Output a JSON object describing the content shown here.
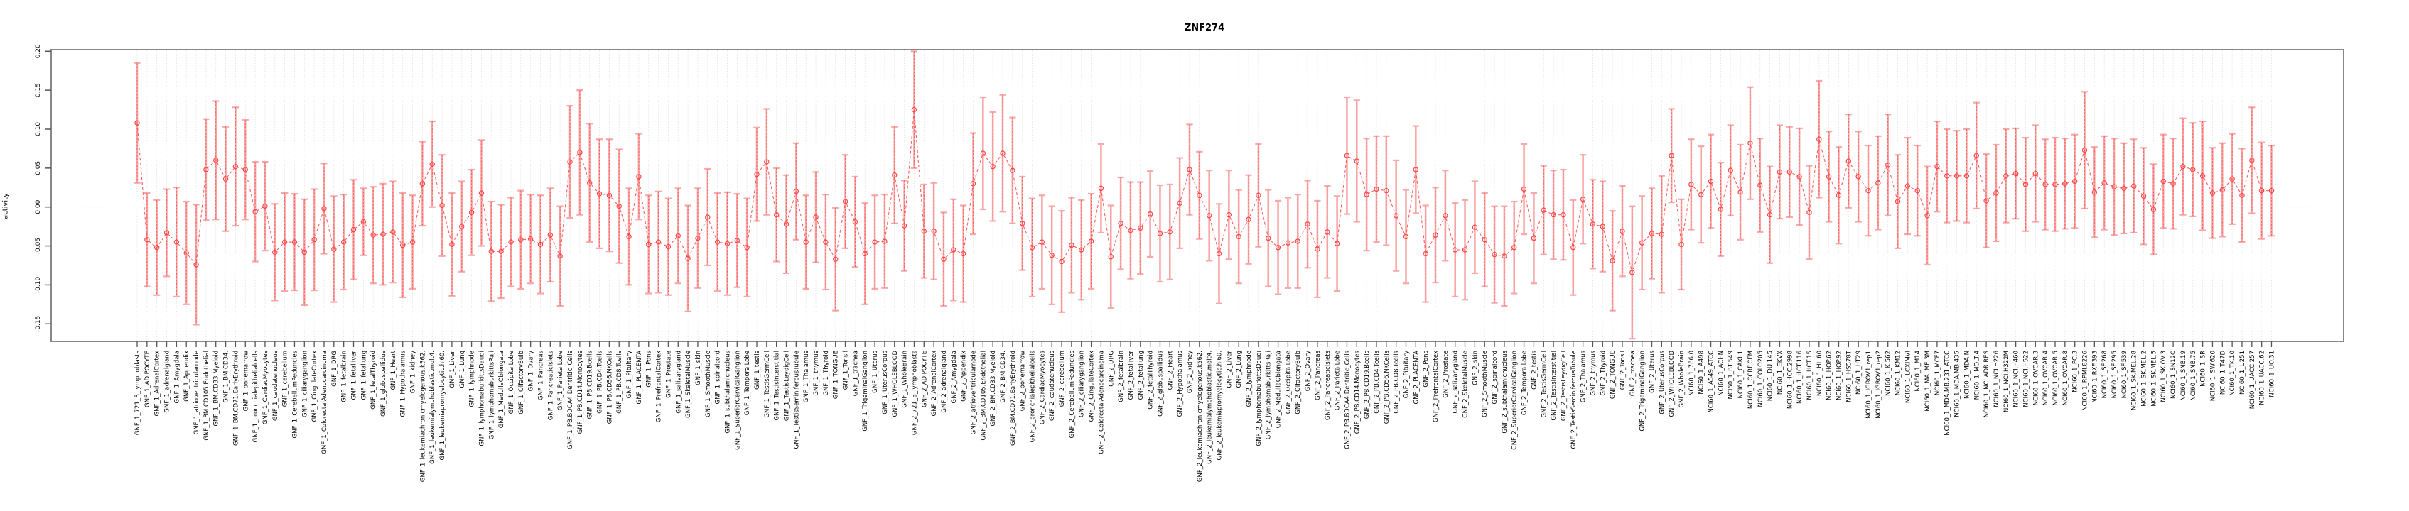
{
  "window": {
    "title": "ZNF274"
  },
  "chart_data": {
    "type": "scatter",
    "title": "ZNF274",
    "ylabel": "activity",
    "xlabel": "",
    "ylim": [
      -0.173,
      0.202
    ],
    "yticks": [
      0.2,
      0.15,
      0.1,
      0.05,
      0.0,
      -0.05,
      -0.1,
      -0.15
    ],
    "grid": "vertical dotted gridline per category; dotted horizontal line at 0.00",
    "legend_position": "none",
    "marker": "open-circle",
    "line_style": "dashed",
    "error_bars": true,
    "colors": {
      "marker": "#ff4444",
      "series_line": "#ff5555",
      "errorbar": "#f9a8a8",
      "gridline": "#d9d9d9",
      "zero_line": "#d0d0d0",
      "axis_box": "#888888",
      "tick": "#555555",
      "text": "#000000",
      "background": "#ffffff"
    },
    "categories": [
      "GNF_1_721_B_lymphoblasts",
      "GNF_1_ADIPOCYTE",
      "GNF_1_AdrenalCortex",
      "GNF_1_adrenalgland",
      "GNF_1_Amygdala",
      "GNF_1_Appendix",
      "GNF_1_atrioventricularnode",
      "GNF_1_BM.CD105.Endothelial",
      "GNF_1_BM.CD33.Myeloid",
      "GNF_1_BM.CD34.",
      "GNF_1_BM.CD71.EarlyErythroid",
      "GNF_1_bonemarrow",
      "GNF_1_bronchialepithelialcells",
      "GNF_1_CardiacMyocytes",
      "GNF_1_caudatenucleus",
      "GNF_1_cerebellum",
      "GNF_1_CerebellumPeduncles",
      "GNF_1_ciliaryganglion",
      "GNF_1_CingulateCortex",
      "GNF_1_ColorectalAdenocarcinoma",
      "GNF_1_DRG",
      "GNF_1_fetalbrain",
      "GNF_1_fetalliver",
      "GNF_1_fetallung",
      "GNF_1_fetalThyroid",
      "GNF_1_globuspallidus",
      "GNF_1_Heart",
      "GNF_1_Hypothalamus",
      "GNF_1_kidney",
      "GNF_1_leukemiachronicmyelogenous.k562.",
      "GNF_1_leukemialymphoblastic.molt4.",
      "GNF_1_leukemiapromyelocytic.hl60.",
      "GNF_1_Liver",
      "GNF_1_Lung",
      "GNF_1_lymphnode",
      "GNF_1_lymphomaburkittsDaudi",
      "GNF_1_lymphomaburkittsRaji",
      "GNF_1_MedullaOblongata",
      "GNF_1_OccipitalLobe",
      "GNF_1_OlfactoryBulb",
      "GNF_1_Ovary",
      "GNF_1_Pancreas",
      "GNF_1_PancreaticIslets",
      "GNF_1_ParietalLobe",
      "GNF_1_PB.BDCA4.Dentritic_Cells",
      "GNF_1_PB.CD14.Monocytes",
      "GNF_1_PB.CD19.Bcells",
      "GNF_1_PB.CD4.Tcells",
      "GNF_1_PB.CD56.NKCells",
      "GNF_1_PB.CD8.Tcells",
      "GNF_1_Pituitary",
      "GNF_1_PLACENTA",
      "GNF_1_Pons",
      "GNF_1_PrefrontalCortex",
      "GNF_1_Prostate",
      "GNF_1_salivarygland",
      "GNF_1_SkeletalMuscle",
      "GNF_1_skin",
      "GNF_1_SmoothMuscle",
      "GNF_1_spinalcord",
      "GNF_1_subthalamicnucleus",
      "GNF_1_SuperiorCervicalGanglion",
      "GNF_1_TemporalLobe",
      "GNF_1_testis",
      "GNF_1_TestisGermCell",
      "GNF_1_TestisInterstitial",
      "GNF_1_TestisLeydigCell",
      "GNF_1_TestisSeminiferousTubule",
      "GNF_1_Thalamus",
      "GNF_1_thymus",
      "GNF_1_Thyroid",
      "GNF_1_TONGUE",
      "GNF_1_Tonsil",
      "GNF_1_trachea",
      "GNF_1_TrigeminalGanglion",
      "GNF_1_Uterus",
      "GNF_1_UterusCorpus",
      "GNF_1_WHOLEBLOOD",
      "GNF_1_WholeBrain",
      "GNF_2_721_B_lymphoblasts",
      "GNF_2_ADIPOCYTE",
      "GNF_2_AdrenalCortex",
      "GNF_2_adrenalgland",
      "GNF_2_Amygdala",
      "GNF_2_Appendix",
      "GNF_2_atrioventricularnode",
      "GNF_2_BM.CD105.Endothelial",
      "GNF_2_BM.CD33.Myeloid",
      "GNF_2_BM.CD34.",
      "GNF_2_BM.CD71.EarlyErythroid",
      "GNF_2_bonemarrow",
      "GNF_2_bronchialepithelialcells",
      "GNF_2_CardiacMyocytes",
      "GNF_2_caudatenucleus",
      "GNF_2_cerebellum",
      "GNF_2_CerebellumPeduncles",
      "GNF_2_ciliaryganglion",
      "GNF_2_CingulateCortex",
      "GNF_2_ColorectalAdenocarcinoma",
      "GNF_2_DRG",
      "GNF_2_fetalbrain",
      "GNF_2_fetalliver",
      "GNF_2_fetallung",
      "GNF_2_fetalThyroid",
      "GNF_2_globuspallidus",
      "GNF_2_Heart",
      "GNF_2_Hypothalamus",
      "GNF_2_kidney",
      "GNF_2_leukemiachronicmyelogenous.k562.",
      "GNF_2_leukemialymphoblastic.molt4.",
      "GNF_2_leukemiapromyelocytic.hl60.",
      "GNF_2_Liver",
      "GNF_2_Lung",
      "GNF_2_lymphnode",
      "GNF_2_lymphomaburkittsDaudi",
      "GNF_2_lymphomaburkittsRaji",
      "GNF_2_MedullaOblongata",
      "GNF_2_OccipitalLobe",
      "GNF_2_OlfactoryBulb",
      "GNF_2_Ovary",
      "GNF_2_Pancreas",
      "GNF_2_PancreaticIslets",
      "GNF_2_ParietalLobe",
      "GNF_2_PB.BDCA4.Dentritic_Cells",
      "GNF_2_PB.CD14.Monocytes",
      "GNF_2_PB.CD19.Bcells",
      "GNF_2_PB.CD4.Tcells",
      "GNF_2_PB.CD56.NKCells",
      "GNF_2_PB.CD8.Tcells",
      "GNF_2_Pituitary",
      "GNF_2_PLACENTA",
      "GNF_2_Pons",
      "GNF_2_PrefrontalCortex",
      "GNF_2_Prostate",
      "GNF_2_salivarygland",
      "GNF_2_SkeletalMuscle",
      "GNF_2_skin",
      "GNF_2_SmoothMuscle",
      "GNF_2_spinalcord",
      "GNF_2_subthalamicnucleus",
      "GNF_2_SuperiorCervicalGanglion",
      "GNF_2_TemporalLobe",
      "GNF_2_testis",
      "GNF_2_TestisGermCell",
      "GNF_2_TestisInterstitial",
      "GNF_2_TestisLeydigCell",
      "GNF_2_TestisSeminiferousTubule",
      "GNF_2_Thalamus",
      "GNF_2_thymus",
      "GNF_2_Thyroid",
      "GNF_2_TONGUE",
      "GNF_2_Tonsil",
      "GNF_2_trachea",
      "GNF_2_TrigeminalGanglion",
      "GNF_2_Uterus",
      "GNF_2_UterusCorpus",
      "GNF_2_WHOLEBLOOD",
      "GNF_2_WholeBrain",
      "NCI60_1_786.0",
      "NCI60_1_A498",
      "NCI60_1_A549_ATCC",
      "NCI60_1_ACHN",
      "NCI60_1_BT.549",
      "NCI60_1_CAKI.1",
      "NCI60_1_CCRF.CEM",
      "NCI60_1_COLO205",
      "NCI60_1_DU.145",
      "NCI60_1_EKVX",
      "NCI60_1_HCC.2998",
      "NCI60_1_HCT.116",
      "NCI60_1_HCT.15",
      "NCI60_1_HL.60",
      "NCI60_1_HOP.62",
      "NCI60_1_HOP.92",
      "NCI60_1_HS578T",
      "NCI60_1_HT29",
      "NCI60_1_IGROV1_rep1",
      "NCI60_1_IGROV1_rep2",
      "NCI60_1_K.562",
      "NCI60_1_KM12",
      "NCI60_1_LOXIMVI",
      "NCI60_1_M14",
      "NCI60_1_MALME.3M",
      "NCI60_1_MCF7",
      "NCI60_1_MDA.MB.231_ATCC",
      "NCI60_1_MDA.MB.435",
      "NCI60_1_MDA.N",
      "NCI60_1_MOLT.4",
      "NCI60_1_NCI.ADR.RES",
      "NCI60_1_NCI.H226",
      "NCI60_1_NCI.H322M",
      "NCI60_1_NCI.H460",
      "NCI60_1_NCI.H522",
      "NCI60_1_OVCAR.3",
      "NCI60_1_OVCAR.4",
      "NCI60_1_OVCAR.5",
      "NCI60_1_OVCAR.8",
      "NCI60_1_PC.3",
      "NCI60_1_RPMI.8226",
      "NCI60_1_RXF.393",
      "NCI60_1_SF.268",
      "NCI60_1_SF.295",
      "NCI60_1_SF.539",
      "NCI60_1_SK.MEL.28",
      "NCI60_1_SK.MEL.2",
      "NCI60_1_SK.MEL.5",
      "NCI60_1_SK.OV.3",
      "NCI60_1_SN12C",
      "NCI60_1_SNB.19",
      "NCI60_1_SNB.75",
      "NCI60_1_SR",
      "NCI60_1_SW.620",
      "NCI60_1_T47D",
      "NCI60_1_TK.10",
      "NCI60_1_U251",
      "NCI60_1_UACC.257",
      "NCI60_1_UACC.62",
      "NCI60_1_UO.31"
    ],
    "values": [
      0.108,
      -0.042,
      -0.052,
      -0.033,
      -0.045,
      -0.059,
      -0.074,
      0.048,
      0.06,
      0.036,
      0.052,
      0.048,
      -0.006,
      0.001,
      -0.058,
      -0.045,
      -0.045,
      -0.058,
      -0.042,
      -0.002,
      -0.054,
      -0.045,
      -0.029,
      -0.019,
      -0.036,
      -0.035,
      -0.032,
      -0.049,
      -0.045,
      0.03,
      0.055,
      0.002,
      -0.048,
      -0.025,
      -0.007,
      0.018,
      -0.057,
      -0.057,
      -0.045,
      -0.042,
      -0.041,
      -0.048,
      -0.036,
      -0.063,
      0.058,
      0.07,
      0.031,
      0.017,
      0.015,
      0.001,
      -0.038,
      0.039,
      -0.048,
      -0.045,
      -0.051,
      -0.037,
      -0.066,
      -0.04,
      -0.013,
      -0.045,
      -0.047,
      -0.043,
      -0.052,
      0.042,
      0.058,
      -0.01,
      -0.022,
      0.02,
      -0.045,
      -0.013,
      -0.045,
      -0.067,
      0.007,
      -0.019,
      -0.06,
      -0.045,
      -0.044,
      0.041,
      -0.024,
      0.125,
      -0.031,
      -0.031,
      -0.067,
      -0.055,
      -0.06,
      0.03,
      0.069,
      0.052,
      0.069,
      0.047,
      -0.021,
      -0.052,
      -0.045,
      -0.062,
      -0.07,
      -0.049,
      -0.055,
      -0.044,
      0.024,
      -0.064,
      -0.021,
      -0.03,
      -0.027,
      -0.009,
      -0.034,
      -0.032,
      0.005,
      0.048,
      0.015,
      -0.011,
      -0.06,
      -0.01,
      -0.038,
      -0.016,
      0.015,
      -0.04,
      -0.052,
      -0.046,
      -0.044,
      -0.022,
      -0.054,
      -0.032,
      -0.047,
      0.066,
      0.059,
      0.016,
      0.023,
      0.021,
      -0.011,
      -0.038,
      0.048,
      -0.06,
      -0.036,
      -0.011,
      -0.055,
      -0.055,
      -0.026,
      -0.042,
      -0.061,
      -0.063,
      -0.052,
      0.023,
      -0.04,
      -0.004,
      -0.01,
      -0.01,
      -0.052,
      0.01,
      -0.022,
      -0.025,
      -0.069,
      -0.031,
      -0.084,
      -0.046,
      -0.034,
      -0.035,
      0.066,
      -0.048,
      0.029,
      0.016,
      0.033,
      -0.003,
      0.047,
      0.019,
      0.082,
      0.028,
      -0.01,
      0.045,
      0.045,
      0.039,
      -0.007,
      0.087,
      0.039,
      0.015,
      0.059,
      0.039,
      0.021,
      0.031,
      0.054,
      0.007,
      0.027,
      0.021,
      -0.011,
      0.052,
      0.04,
      0.04,
      0.04,
      0.066,
      0.008,
      0.018,
      0.04,
      0.043,
      0.029,
      0.043,
      0.029,
      0.029,
      0.03,
      0.033,
      0.073,
      0.019,
      0.031,
      0.026,
      0.024,
      0.027,
      0.014,
      -0.003,
      0.033,
      0.03,
      0.052,
      0.048,
      0.04,
      0.018,
      0.022,
      0.036,
      0.015,
      0.06,
      0.021,
      0.021
    ],
    "errors": [
      0.077,
      0.06,
      0.061,
      0.056,
      0.07,
      0.066,
      0.077,
      0.065,
      0.076,
      0.067,
      0.076,
      0.064,
      0.064,
      0.057,
      0.062,
      0.063,
      0.062,
      0.068,
      0.065,
      0.058,
      0.068,
      0.061,
      0.064,
      0.043,
      0.062,
      0.065,
      0.065,
      0.067,
      0.06,
      0.054,
      0.055,
      0.065,
      0.066,
      0.058,
      0.055,
      0.068,
      0.064,
      0.06,
      0.057,
      0.063,
      0.057,
      0.063,
      0.06,
      0.064,
      0.072,
      0.08,
      0.076,
      0.07,
      0.072,
      0.073,
      0.062,
      0.055,
      0.063,
      0.065,
      0.062,
      0.061,
      0.068,
      0.064,
      0.062,
      0.063,
      0.066,
      0.06,
      0.063,
      0.06,
      0.068,
      0.06,
      0.063,
      0.062,
      0.06,
      0.058,
      0.061,
      0.066,
      0.06,
      0.058,
      0.065,
      0.06,
      0.06,
      0.062,
      0.058,
      0.075,
      0.06,
      0.062,
      0.06,
      0.065,
      0.062,
      0.065,
      0.072,
      0.07,
      0.075,
      0.068,
      0.06,
      0.063,
      0.06,
      0.063,
      0.065,
      0.061,
      0.064,
      0.061,
      0.057,
      0.066,
      0.059,
      0.062,
      0.059,
      0.055,
      0.062,
      0.061,
      0.058,
      0.058,
      0.056,
      0.058,
      0.064,
      0.057,
      0.06,
      0.057,
      0.066,
      0.062,
      0.06,
      0.058,
      0.06,
      0.056,
      0.062,
      0.059,
      0.061,
      0.075,
      0.078,
      0.072,
      0.068,
      0.07,
      0.071,
      0.06,
      0.056,
      0.062,
      0.061,
      0.058,
      0.06,
      0.064,
      0.059,
      0.06,
      0.062,
      0.064,
      0.059,
      0.058,
      0.058,
      0.057,
      0.057,
      0.058,
      0.061,
      0.057,
      0.057,
      0.058,
      0.064,
      0.058,
      0.085,
      0.06,
      0.058,
      0.075,
      0.06,
      0.058,
      0.058,
      0.062,
      0.06,
      0.06,
      0.058,
      0.061,
      0.072,
      0.06,
      0.062,
      0.06,
      0.058,
      0.062,
      0.06,
      0.075,
      0.058,
      0.062,
      0.06,
      0.058,
      0.058,
      0.06,
      0.065,
      0.06,
      0.062,
      0.058,
      0.063,
      0.058,
      0.06,
      0.058,
      0.06,
      0.068,
      0.06,
      0.062,
      0.06,
      0.058,
      0.06,
      0.062,
      0.058,
      0.06,
      0.058,
      0.06,
      0.075,
      0.058,
      0.06,
      0.062,
      0.058,
      0.06,
      0.062,
      0.058,
      0.06,
      0.058,
      0.062,
      0.06,
      0.07,
      0.058,
      0.06,
      0.058,
      0.06,
      0.068,
      0.062,
      0.058
    ]
  }
}
